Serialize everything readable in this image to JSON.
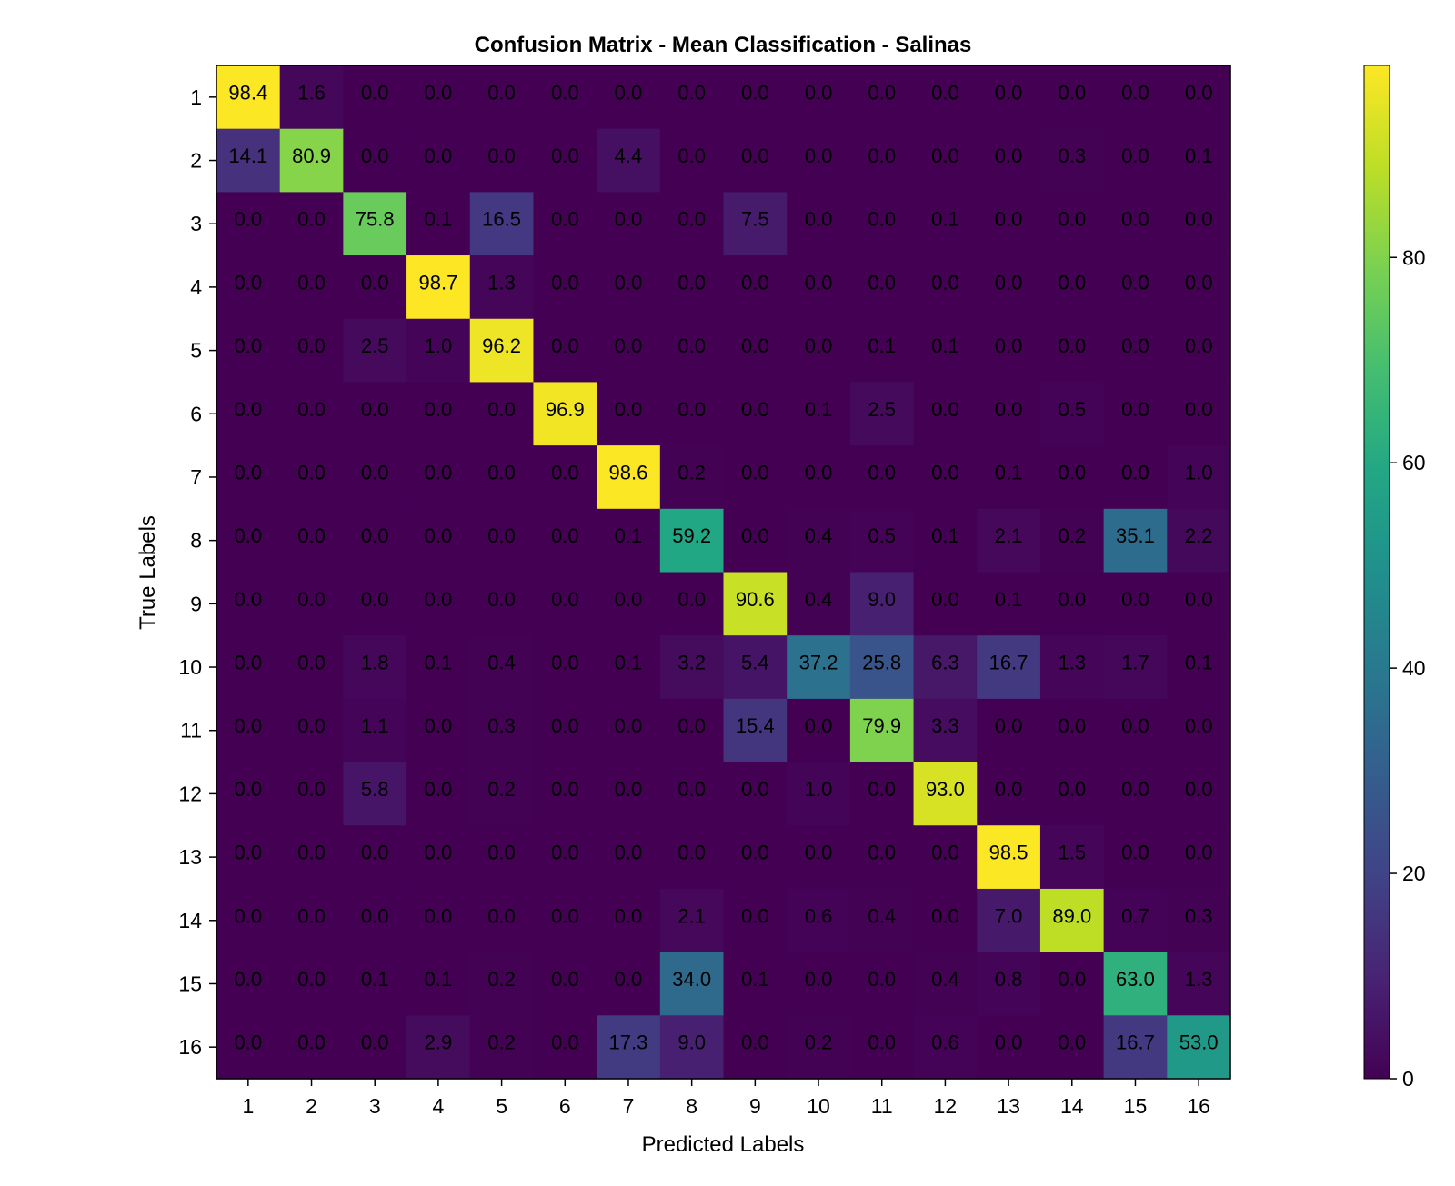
{
  "chart_data": {
    "type": "heatmap",
    "title": "Confusion Matrix - Mean Classification - Salinas",
    "xlabel": "Predicted Labels",
    "ylabel": "True Labels",
    "x_categories": [
      "1",
      "2",
      "3",
      "4",
      "5",
      "6",
      "7",
      "8",
      "9",
      "10",
      "11",
      "12",
      "13",
      "14",
      "15",
      "16"
    ],
    "y_categories": [
      "1",
      "2",
      "3",
      "4",
      "5",
      "6",
      "7",
      "8",
      "9",
      "10",
      "11",
      "12",
      "13",
      "14",
      "15",
      "16"
    ],
    "values": [
      [
        98.4,
        1.6,
        0.0,
        0.0,
        0.0,
        0.0,
        0.0,
        0.0,
        0.0,
        0.0,
        0.0,
        0.0,
        0.0,
        0.0,
        0.0,
        0.0
      ],
      [
        14.1,
        80.9,
        0.0,
        0.0,
        0.0,
        0.0,
        4.4,
        0.0,
        0.0,
        0.0,
        0.0,
        0.0,
        0.0,
        0.3,
        0.0,
        0.1
      ],
      [
        0.0,
        0.0,
        75.8,
        0.1,
        16.5,
        0.0,
        0.0,
        0.0,
        7.5,
        0.0,
        0.0,
        0.1,
        0.0,
        0.0,
        0.0,
        0.0
      ],
      [
        0.0,
        0.0,
        0.0,
        98.7,
        1.3,
        0.0,
        0.0,
        0.0,
        0.0,
        0.0,
        0.0,
        0.0,
        0.0,
        0.0,
        0.0,
        0.0
      ],
      [
        0.0,
        0.0,
        2.5,
        1.0,
        96.2,
        0.0,
        0.0,
        0.0,
        0.0,
        0.0,
        0.1,
        0.1,
        0.0,
        0.0,
        0.0,
        0.0
      ],
      [
        0.0,
        0.0,
        0.0,
        0.0,
        0.0,
        96.9,
        0.0,
        0.0,
        0.0,
        0.1,
        2.5,
        0.0,
        0.0,
        0.5,
        0.0,
        0.0
      ],
      [
        0.0,
        0.0,
        0.0,
        0.0,
        0.0,
        0.0,
        98.6,
        0.2,
        0.0,
        0.0,
        0.0,
        0.0,
        0.1,
        0.0,
        0.0,
        1.0
      ],
      [
        0.0,
        0.0,
        0.0,
        0.0,
        0.0,
        0.0,
        0.1,
        59.2,
        0.0,
        0.4,
        0.5,
        0.1,
        2.1,
        0.2,
        35.1,
        2.2
      ],
      [
        0.0,
        0.0,
        0.0,
        0.0,
        0.0,
        0.0,
        0.0,
        0.0,
        90.6,
        0.4,
        9.0,
        0.0,
        0.1,
        0.0,
        0.0,
        0.0
      ],
      [
        0.0,
        0.0,
        1.8,
        0.1,
        0.4,
        0.0,
        0.1,
        3.2,
        5.4,
        37.2,
        25.8,
        6.3,
        16.7,
        1.3,
        1.7,
        0.1
      ],
      [
        0.0,
        0.0,
        1.1,
        0.0,
        0.3,
        0.0,
        0.0,
        0.0,
        15.4,
        0.0,
        79.9,
        3.3,
        0.0,
        0.0,
        0.0,
        0.0
      ],
      [
        0.0,
        0.0,
        5.8,
        0.0,
        0.2,
        0.0,
        0.0,
        0.0,
        0.0,
        1.0,
        0.0,
        93.0,
        0.0,
        0.0,
        0.0,
        0.0
      ],
      [
        0.0,
        0.0,
        0.0,
        0.0,
        0.0,
        0.0,
        0.0,
        0.0,
        0.0,
        0.0,
        0.0,
        0.0,
        98.5,
        1.5,
        0.0,
        0.0
      ],
      [
        0.0,
        0.0,
        0.0,
        0.0,
        0.0,
        0.0,
        0.0,
        2.1,
        0.0,
        0.6,
        0.4,
        0.0,
        7.0,
        89.0,
        0.7,
        0.3
      ],
      [
        0.0,
        0.0,
        0.1,
        0.1,
        0.2,
        0.0,
        0.0,
        34.0,
        0.1,
        0.0,
        0.0,
        0.4,
        0.8,
        0.0,
        63.0,
        1.3
      ],
      [
        0.0,
        0.0,
        0.0,
        2.9,
        0.2,
        0.0,
        17.3,
        9.0,
        0.0,
        0.2,
        0.0,
        0.6,
        0.0,
        0.0,
        16.7,
        53.0
      ]
    ],
    "colormap": "viridis",
    "color_range": [
      0,
      98.7
    ],
    "colorbar_ticks": [
      0,
      20,
      40,
      60,
      80
    ],
    "colorbar_position": "right",
    "grid": false
  }
}
